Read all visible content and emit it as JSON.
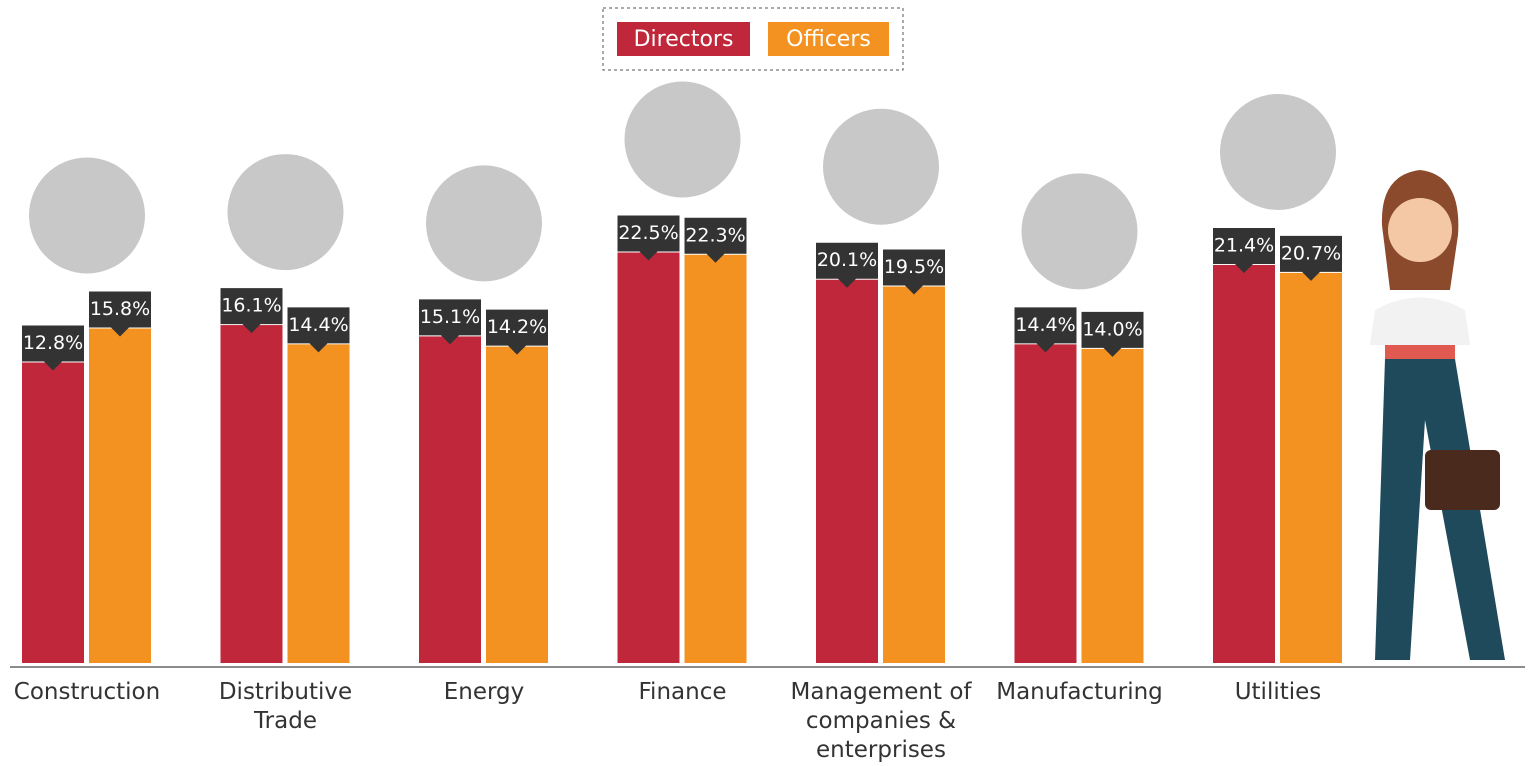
{
  "chart_data": {
    "type": "bar",
    "categories": [
      "Construction",
      "Distributive Trade",
      "Energy",
      "Finance",
      "Management of companies & enterprises",
      "Manufacturing",
      "Utilities"
    ],
    "series": [
      {
        "name": "Directors",
        "color": "#c1273a",
        "values": [
          12.8,
          16.1,
          15.1,
          22.5,
          20.1,
          14.4,
          21.4
        ],
        "value_labels": [
          "12.8%",
          "16.1%",
          "15.1%",
          "22.5%",
          "20.1%",
          "14.4%",
          "21.4%"
        ]
      },
      {
        "name": "Officers",
        "color": "#f39220",
        "values": [
          15.8,
          14.4,
          14.2,
          22.3,
          19.5,
          14.0,
          20.7
        ],
        "value_labels": [
          "15.8%",
          "14.4%",
          "14.2%",
          "22.3%",
          "19.5%",
          "14.0%",
          "20.7%"
        ]
      }
    ]
  }
}
